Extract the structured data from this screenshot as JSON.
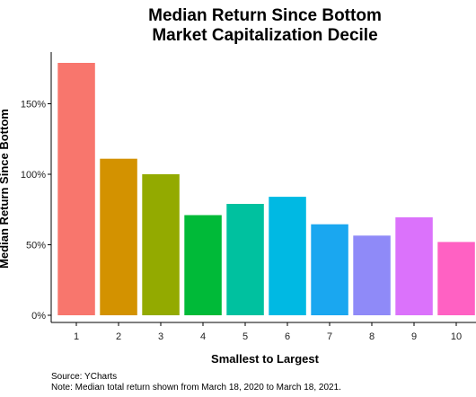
{
  "chart_data": {
    "type": "bar",
    "title": [
      "Median Return Since Bottom",
      "Market Capitalization Decile"
    ],
    "xlabel": "Smallest to Largest",
    "ylabel": "Median Return Since Bottom",
    "categories": [
      "1",
      "2",
      "3",
      "4",
      "5",
      "6",
      "7",
      "8",
      "9",
      "10"
    ],
    "values": [
      179,
      111,
      100,
      71,
      79,
      84,
      64.5,
      56.5,
      69.5,
      52
    ],
    "ylim": [
      0,
      188
    ],
    "y_ticks": [
      0,
      50,
      100,
      150
    ],
    "y_tick_labels": [
      "0%",
      "50%",
      "100%",
      "150%"
    ],
    "colors": [
      "#F8766D",
      "#D39200",
      "#93AA00",
      "#00BA38",
      "#00C19F",
      "#00B9E3",
      "#1AA7F0",
      "#8F8AF8",
      "#DB72FB",
      "#FF61C3"
    ],
    "grid": false,
    "legend": "none",
    "captions": [
      "Source: YCharts",
      "Note: Median total return shown from March 18, 2020 to March 18, 2021."
    ]
  }
}
